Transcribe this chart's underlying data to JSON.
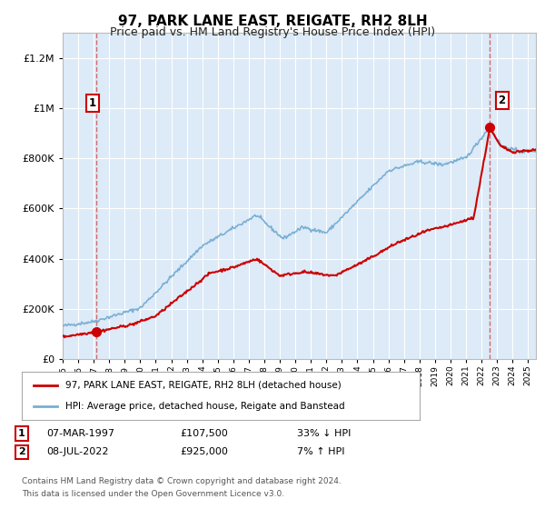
{
  "title": "97, PARK LANE EAST, REIGATE, RH2 8LH",
  "subtitle": "Price paid vs. HM Land Registry's House Price Index (HPI)",
  "legend_line1": "97, PARK LANE EAST, REIGATE, RH2 8LH (detached house)",
  "legend_line2": "HPI: Average price, detached house, Reigate and Banstead",
  "annotation1_date": "07-MAR-1997",
  "annotation1_price": "£107,500",
  "annotation1_hpi": "33% ↓ HPI",
  "annotation2_date": "08-JUL-2022",
  "annotation2_price": "£925,000",
  "annotation2_hpi": "7% ↑ HPI",
  "footnote1": "Contains HM Land Registry data © Crown copyright and database right 2024.",
  "footnote2": "This data is licensed under the Open Government Licence v3.0.",
  "sale1_year": 1997.17,
  "sale1_value": 107500,
  "sale2_year": 2022.52,
  "sale2_value": 925000,
  "plot_color_red": "#cc0000",
  "plot_color_blue": "#7aafd4",
  "background_color": "#ddeaf7",
  "grid_color": "#ffffff",
  "vline_color": "#cc5555",
  "marker_color": "#cc0000",
  "ylim": [
    0,
    1300000
  ],
  "xlim_start": 1995,
  "xlim_end": 2025.5
}
